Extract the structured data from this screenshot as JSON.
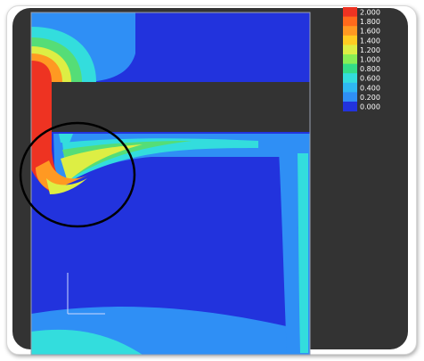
{
  "colors": {
    "background": "#333333",
    "deep_blue": "#2233dd",
    "light_blue": "#2f8ff5",
    "cyan": "#33dddd",
    "green": "#55dd77",
    "yellow": "#ddee44",
    "orange": "#ff9922",
    "red": "#ee3322",
    "highlight_circle": "#000000"
  },
  "legend": {
    "labels": [
      "2.000",
      "1.800",
      "1.600",
      "1.400",
      "1.200",
      "1.000",
      "0.800",
      "0.600",
      "0.400",
      "0.200",
      "0.000"
    ],
    "swatch_colors": [
      "#ee3322",
      "#ff6a1c",
      "#ff9922",
      "#ffcc22",
      "#ddee44",
      "#88ee55",
      "#33dd88",
      "#33dddd",
      "#2fb8f2",
      "#2f8ff5",
      "#2233dd"
    ]
  }
}
